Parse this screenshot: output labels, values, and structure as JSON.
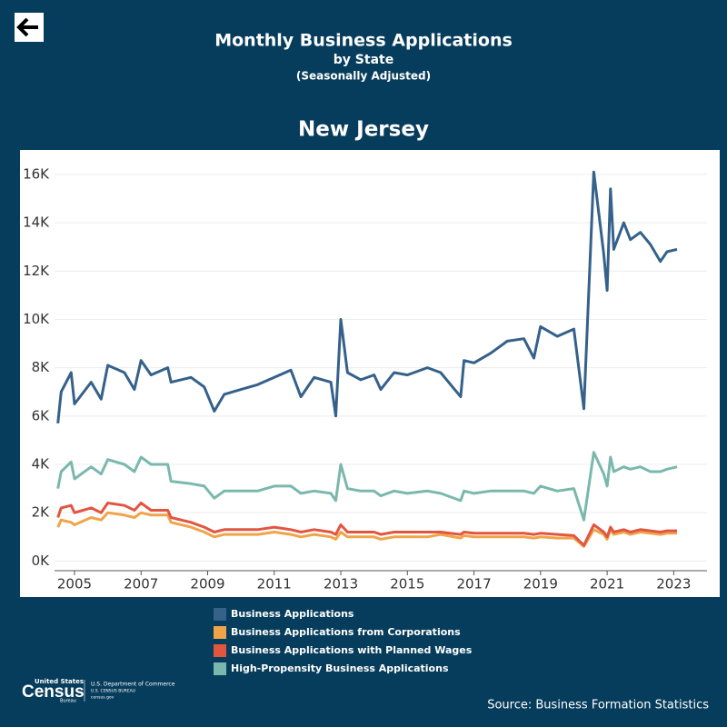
{
  "header": {
    "title": "Monthly Business Applications",
    "subtitle": "by State",
    "note": "(Seasonally Adjusted)"
  },
  "chart_data": {
    "type": "line",
    "title": "New Jersey",
    "x": [
      2004.5,
      2004.6,
      2004.9,
      2005.0,
      2005.5,
      2005.8,
      2006.0,
      2006.5,
      2006.8,
      2007.0,
      2007.3,
      2007.8,
      2007.9,
      2008.5,
      2008.9,
      2009.2,
      2009.5,
      2010.0,
      2010.5,
      2011.0,
      2011.5,
      2011.8,
      2012.2,
      2012.7,
      2012.85,
      2013.0,
      2013.2,
      2013.6,
      2014.0,
      2014.2,
      2014.6,
      2015.0,
      2015.6,
      2016.0,
      2016.6,
      2016.7,
      2017.0,
      2017.5,
      2018.0,
      2018.5,
      2018.8,
      2019.0,
      2019.5,
      2020.0,
      2020.3,
      2020.6,
      2020.9,
      2021.0,
      2021.1,
      2021.2,
      2021.5,
      2021.7,
      2022.0,
      2022.3,
      2022.6,
      2022.8,
      2023.1
    ],
    "series": [
      {
        "name": "Business Applications",
        "color": "#35618a",
        "values": [
          5700,
          7000,
          7800,
          6500,
          7400,
          6700,
          8100,
          7800,
          7100,
          8300,
          7700,
          8000,
          7400,
          7600,
          7200,
          6200,
          6900,
          7100,
          7300,
          7600,
          7900,
          6800,
          7600,
          7400,
          6000,
          10000,
          7800,
          7500,
          7700,
          7100,
          7800,
          7700,
          8000,
          7800,
          6800,
          8300,
          8200,
          8600,
          9100,
          9200,
          8400,
          9700,
          9300,
          9600,
          6300,
          16100,
          12700,
          11200,
          15400,
          12900,
          14000,
          13300,
          13600,
          13100,
          12400,
          12800,
          12900
        ]
      },
      {
        "name": "Business Applications from Corporations",
        "color": "#f0a44a",
        "values": [
          1400,
          1700,
          1600,
          1500,
          1800,
          1700,
          2000,
          1900,
          1800,
          2000,
          1900,
          1900,
          1600,
          1400,
          1200,
          1000,
          1100,
          1100,
          1100,
          1200,
          1100,
          1000,
          1100,
          1000,
          900,
          1200,
          1000,
          1000,
          1000,
          900,
          1000,
          1000,
          1000,
          1100,
          950,
          1050,
          1000,
          1000,
          1000,
          1000,
          950,
          1000,
          950,
          950,
          600,
          1300,
          1100,
          900,
          1300,
          1100,
          1200,
          1100,
          1200,
          1150,
          1100,
          1150,
          1150
        ]
      },
      {
        "name": "Business Applications with Planned Wages",
        "color": "#e25640",
        "values": [
          1800,
          2200,
          2300,
          2000,
          2200,
          2000,
          2400,
          2300,
          2100,
          2400,
          2100,
          2100,
          1800,
          1600,
          1400,
          1200,
          1300,
          1300,
          1300,
          1400,
          1300,
          1200,
          1300,
          1200,
          1100,
          1500,
          1200,
          1200,
          1200,
          1100,
          1200,
          1200,
          1200,
          1200,
          1100,
          1200,
          1150,
          1150,
          1150,
          1150,
          1100,
          1150,
          1100,
          1050,
          650,
          1500,
          1200,
          1000,
          1400,
          1200,
          1300,
          1200,
          1300,
          1250,
          1200,
          1250,
          1250
        ]
      },
      {
        "name": "High-Propensity Business Applications",
        "color": "#7ab8ae",
        "values": [
          3000,
          3700,
          4100,
          3400,
          3900,
          3600,
          4200,
          4000,
          3700,
          4300,
          4000,
          4000,
          3300,
          3200,
          3100,
          2600,
          2900,
          2900,
          2900,
          3100,
          3100,
          2800,
          2900,
          2800,
          2500,
          4000,
          3000,
          2900,
          2900,
          2700,
          2900,
          2800,
          2900,
          2800,
          2500,
          2900,
          2800,
          2900,
          2900,
          2900,
          2800,
          3100,
          2900,
          3000,
          1700,
          4500,
          3600,
          3100,
          4300,
          3700,
          3900,
          3800,
          3900,
          3700,
          3700,
          3800,
          3900
        ]
      }
    ],
    "xlim": [
      2004.4,
      2024.0
    ],
    "xticks": [
      2005,
      2007,
      2009,
      2011,
      2013,
      2015,
      2017,
      2019,
      2021,
      2023
    ],
    "ylim": [
      -400,
      16900
    ],
    "yticks": [
      {
        "value": 0,
        "label": "0K"
      },
      {
        "value": 2000,
        "label": "2K"
      },
      {
        "value": 4000,
        "label": "4K"
      },
      {
        "value": 6000,
        "label": "6K"
      },
      {
        "value": 8000,
        "label": "8K"
      },
      {
        "value": 10000,
        "label": "10K"
      },
      {
        "value": 12000,
        "label": "12K"
      },
      {
        "value": 14000,
        "label": "14K"
      },
      {
        "value": 16000,
        "label": "16K"
      }
    ],
    "grid": true
  },
  "footer": {
    "logo_top": "United States",
    "logo_main": "Census",
    "logo_sub": "Bureau",
    "dept": "U.S. Department of Commerce",
    "bureau": "U.S. CENSUS BUREAU",
    "site": "census.gov",
    "source": "Source: Business Formation Statistics"
  }
}
